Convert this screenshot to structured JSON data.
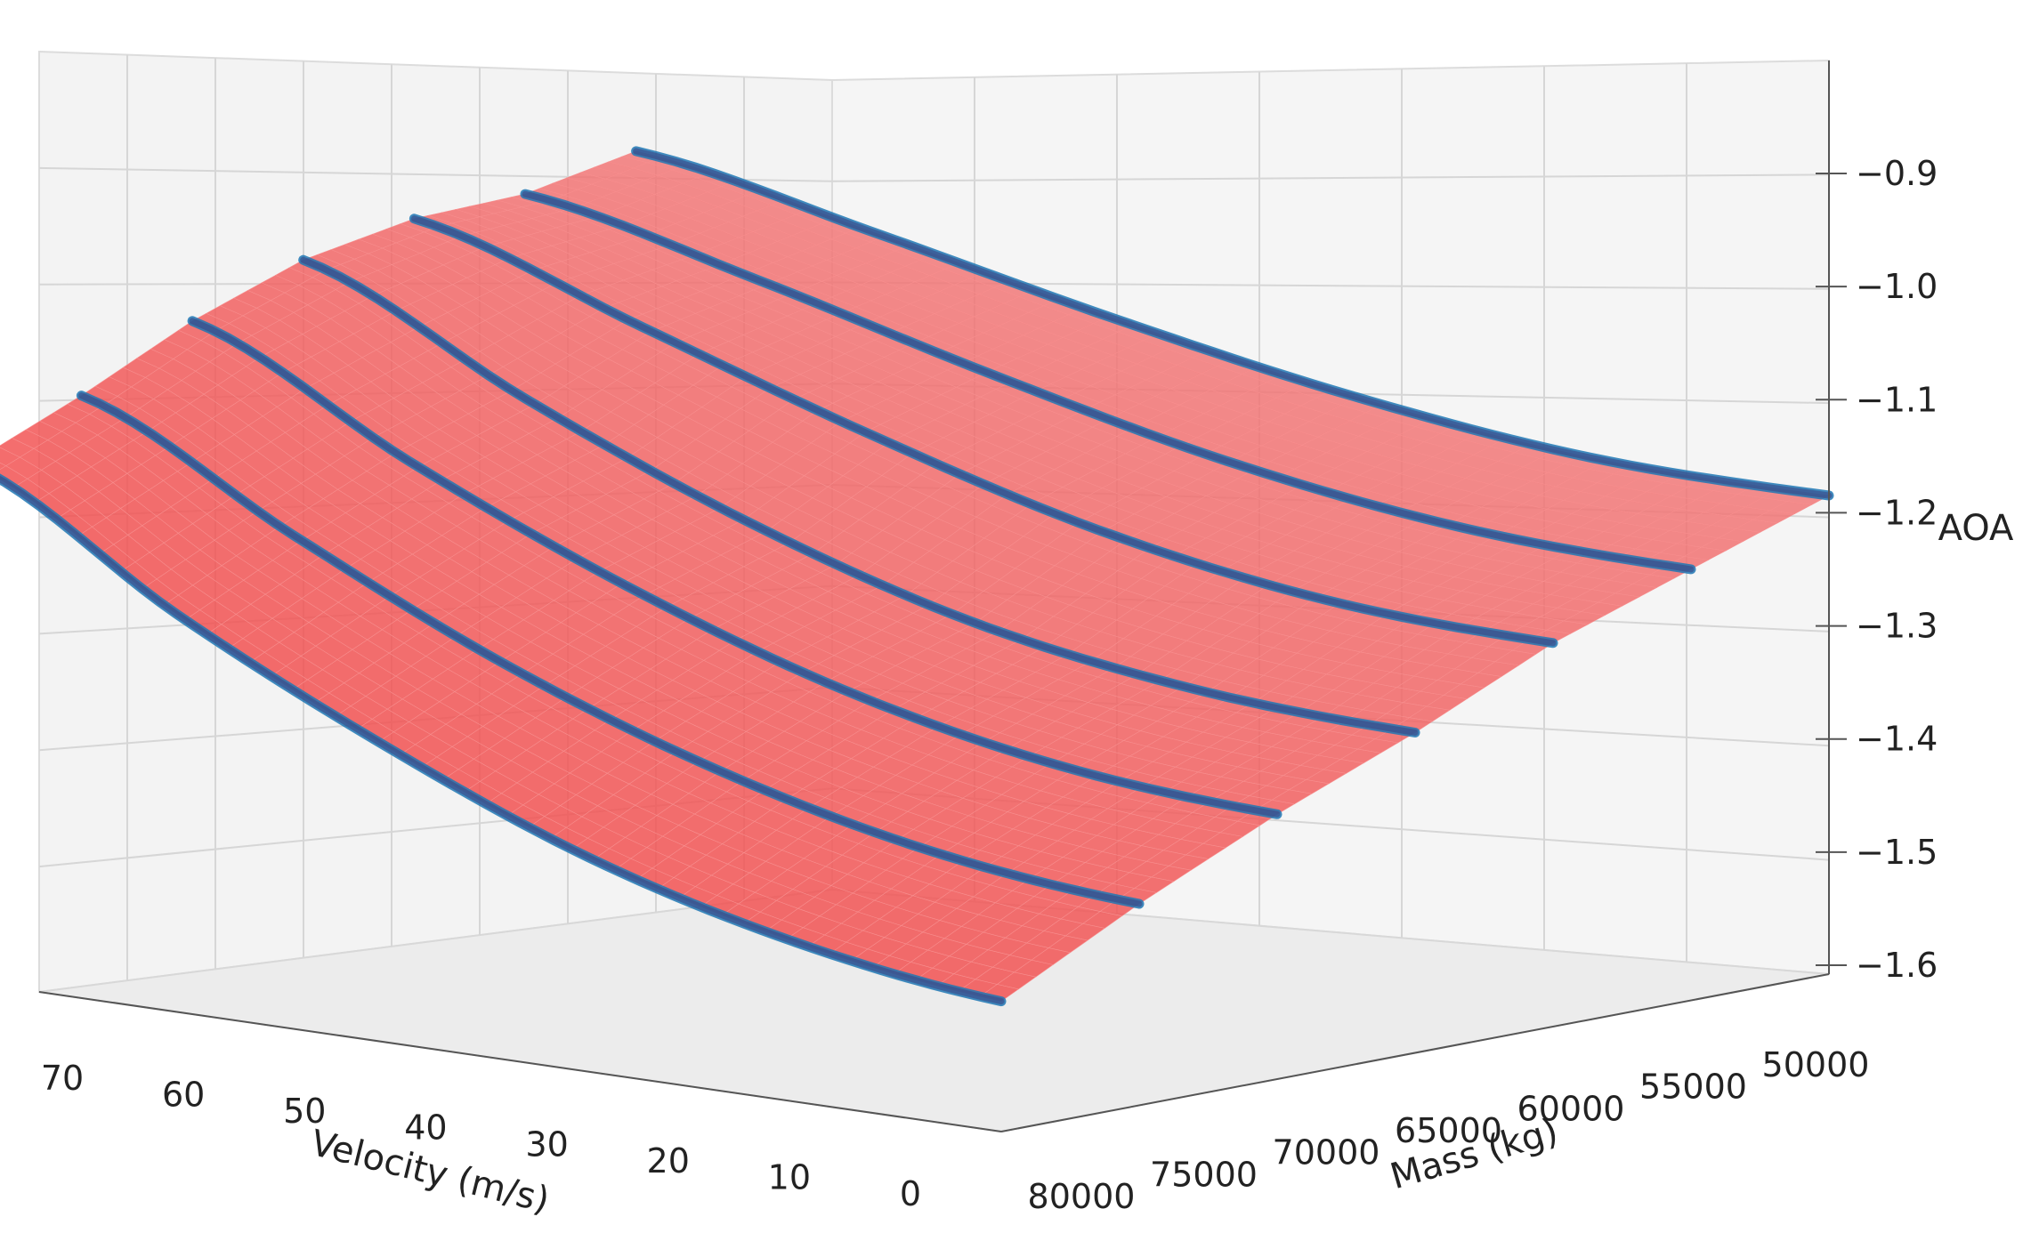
{
  "chart_data": {
    "type": "surface3d",
    "title": "",
    "xlabel": "Velocity (m/s)",
    "ylabel": "Mass (kg)",
    "zlabel": "AOA",
    "x_ticks": [
      "70",
      "60",
      "50",
      "40",
      "30",
      "20",
      "10",
      "0"
    ],
    "y_ticks": [
      "80000",
      "75000",
      "70000",
      "65000",
      "60000",
      "55000",
      "50000"
    ],
    "z_ticks": [
      "−0.9",
      "−1.0",
      "−1.1",
      "−1.2",
      "−1.3",
      "−1.4",
      "−1.5",
      "−1.6"
    ],
    "x_range": [
      0,
      70
    ],
    "y_range": [
      50000,
      80000
    ],
    "z_range": [
      -1.65,
      -0.85
    ],
    "grid": true,
    "colors": {
      "surface": "#f24b4b",
      "curve": "#1f77b4",
      "pane": "#f2f2f2",
      "grid": "#d6d6d6"
    },
    "series": [
      {
        "mass": 80000,
        "points": [
          [
            75,
            -1.15
          ],
          [
            60,
            -1.302
          ],
          [
            45,
            -1.429
          ],
          [
            30,
            -1.534
          ],
          [
            15,
            -1.603
          ],
          [
            0,
            -1.64
          ]
        ]
      },
      {
        "mass": 75000,
        "points": [
          [
            75,
            -1.093
          ],
          [
            60,
            -1.232
          ],
          [
            45,
            -1.358
          ],
          [
            30,
            -1.454
          ],
          [
            15,
            -1.519
          ],
          [
            0,
            -1.55
          ]
        ]
      },
      {
        "mass": 70000,
        "points": [
          [
            75,
            -1.028
          ],
          [
            60,
            -1.169
          ],
          [
            45,
            -1.29
          ],
          [
            30,
            -1.385
          ],
          [
            15,
            -1.445
          ],
          [
            0,
            -1.47
          ]
        ]
      },
      {
        "mass": 65000,
        "points": [
          [
            75,
            -0.98
          ],
          [
            60,
            -1.12
          ],
          [
            45,
            -1.24
          ],
          [
            30,
            -1.33
          ],
          [
            15,
            -1.38
          ],
          [
            0,
            -1.4
          ]
        ]
      },
      {
        "mass": 60000,
        "points": [
          [
            75,
            -0.957
          ],
          [
            60,
            -1.059
          ],
          [
            45,
            -1.16
          ],
          [
            30,
            -1.246
          ],
          [
            15,
            -1.3
          ],
          [
            0,
            -1.32
          ]
        ]
      },
      {
        "mass": 55000,
        "points": [
          [
            75,
            -0.955
          ],
          [
            60,
            -1.03
          ],
          [
            45,
            -1.115
          ],
          [
            30,
            -1.19
          ],
          [
            15,
            -1.24
          ],
          [
            0,
            -1.26
          ]
        ]
      },
      {
        "mass": 50000,
        "points": [
          [
            75,
            -0.93
          ],
          [
            60,
            -1.0
          ],
          [
            45,
            -1.075
          ],
          [
            30,
            -1.14
          ],
          [
            15,
            -1.185
          ],
          [
            0,
            -1.2
          ]
        ]
      }
    ]
  }
}
